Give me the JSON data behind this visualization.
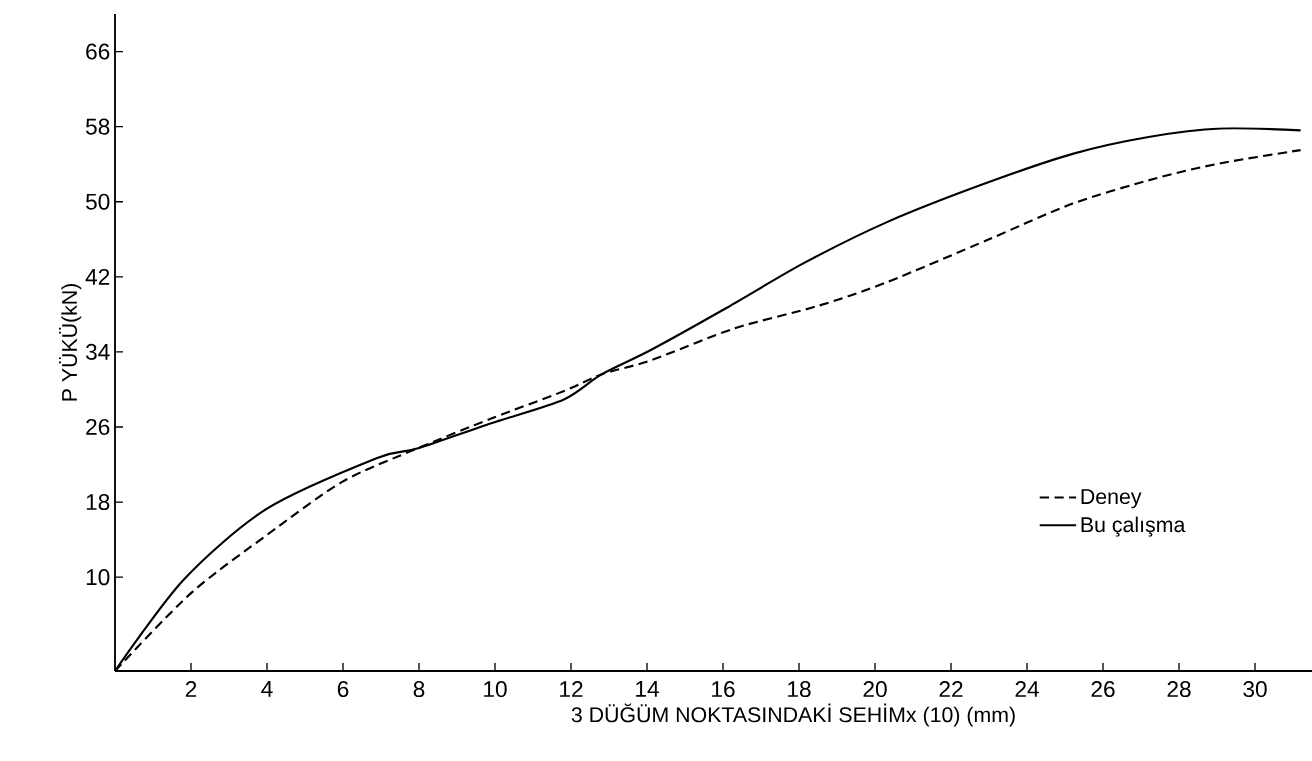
{
  "chart_data": {
    "type": "line",
    "xlabel": "3  DÜĞÜM  NOKTASINDAKİ  SEHİMx (10) (mm)",
    "ylabel": "P  YÜKÜ(kN)",
    "xlim": [
      0,
      31.5
    ],
    "ylim": [
      0,
      70
    ],
    "xticks": [
      2,
      4,
      6,
      8,
      10,
      12,
      14,
      16,
      18,
      20,
      22,
      24,
      26,
      28,
      30
    ],
    "yticks": [
      10,
      18,
      26,
      34,
      42,
      50,
      58,
      66
    ],
    "legend": "bottom right",
    "series": [
      {
        "name": "Deney",
        "color": "#000000",
        "line_style": "dashed",
        "x": [
          0,
          2.0,
          4.0,
          6.0,
          7.95,
          9.9,
          11.8,
          12.8,
          14.1,
          16.3,
          18.5,
          20.3,
          23.0,
          25.2,
          27.4,
          29.1,
          31.2
        ],
        "values": [
          0,
          8.3,
          14.5,
          20.2,
          23.7,
          26.9,
          29.8,
          31.6,
          33.1,
          36.5,
          38.9,
          41.4,
          46.0,
          49.8,
          52.5,
          54.1,
          55.5
        ]
      },
      {
        "name": "Bu çalışma",
        "color": "#000000",
        "line_style": "solid",
        "x": [
          0,
          1.8,
          4.0,
          6.9,
          7.95,
          9.9,
          11.8,
          12.8,
          14.1,
          16.1,
          18.1,
          20.3,
          22.8,
          25.2,
          27.2,
          29.1,
          31.2
        ],
        "values": [
          0,
          9.7,
          17.3,
          22.7,
          23.7,
          26.4,
          28.9,
          31.6,
          34.2,
          38.7,
          43.4,
          47.8,
          51.8,
          55.1,
          56.9,
          57.8,
          57.6
        ]
      }
    ]
  }
}
